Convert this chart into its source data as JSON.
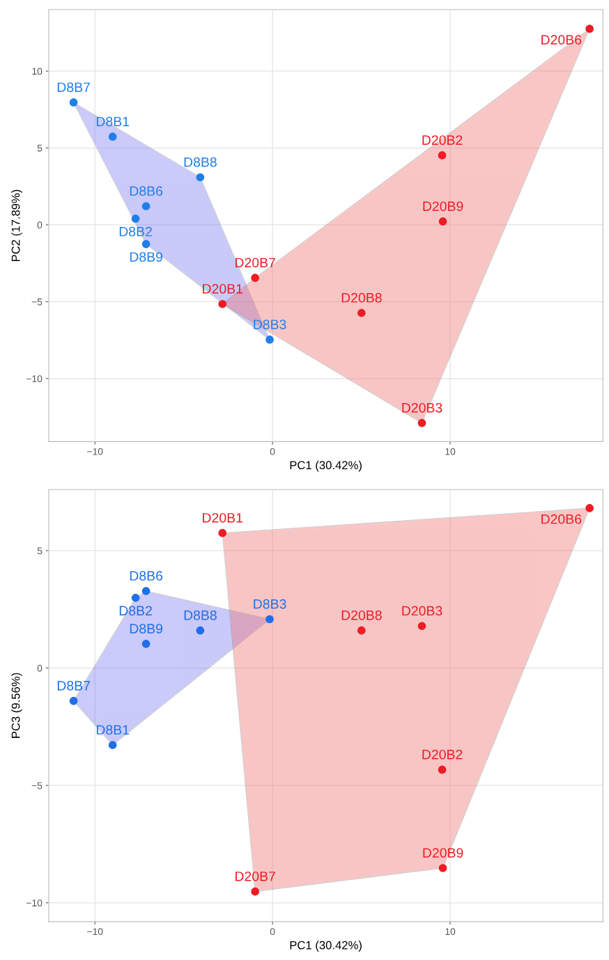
{
  "chart_data": [
    {
      "type": "scatter",
      "xlabel": "PC1 (30.42%)",
      "ylabel": "PC2 (17.89%)",
      "xlim": [
        -12.6,
        18.6
      ],
      "ylim": [
        -14.1,
        14.0
      ],
      "xticks": [
        -10,
        0,
        10
      ],
      "yticks": [
        -10,
        -5,
        0,
        5,
        10
      ],
      "grid": true,
      "marker": "circle",
      "series": [
        {
          "color": "#1f7fe8",
          "x": [
            -11.2,
            -9.0,
            -4.07,
            -7.12,
            -7.71,
            -7.12,
            -0.16
          ],
          "values": [
            7.96,
            5.73,
            3.09,
            1.21,
            0.4,
            -1.25,
            -7.47
          ]
        },
        {
          "color": "#ee1c25",
          "x": [
            17.85,
            9.55,
            9.59,
            -0.98,
            -2.82,
            5.01,
            8.41
          ],
          "values": [
            12.75,
            4.52,
            0.22,
            -3.45,
            -5.15,
            -5.73,
            -12.89
          ]
        }
      ],
      "annotations": [
        {
          "text": "D8B7",
          "x": -11.2,
          "y": 7.96
        },
        {
          "text": "D8B1",
          "x": -9.0,
          "y": 5.73
        },
        {
          "text": "D8B8",
          "x": -4.07,
          "y": 3.09
        },
        {
          "text": "D8B6",
          "x": -7.12,
          "y": 1.21
        },
        {
          "text": "D8B2",
          "x": -7.71,
          "y": 0.4
        },
        {
          "text": "D8B9",
          "x": -7.12,
          "y": -1.25
        },
        {
          "text": "D8B3",
          "x": -0.16,
          "y": -7.47
        },
        {
          "text": "D20B6",
          "x": 17.85,
          "y": 12.75
        },
        {
          "text": "D20B2",
          "x": 9.55,
          "y": 4.52
        },
        {
          "text": "D20B9",
          "x": 9.59,
          "y": 0.22
        },
        {
          "text": "D20B7",
          "x": -0.98,
          "y": -3.45
        },
        {
          "text": "D20B1",
          "x": -2.82,
          "y": -5.15
        },
        {
          "text": "D20B8",
          "x": 5.01,
          "y": -5.73
        },
        {
          "text": "D20B3",
          "x": 8.41,
          "y": -12.89
        }
      ]
    },
    {
      "type": "scatter",
      "xlabel": "PC1 (30.42%)",
      "ylabel": "PC3 (9.56%)",
      "xlim": [
        -12.6,
        18.6
      ],
      "ylim": [
        -10.8,
        7.6
      ],
      "xticks": [
        -10,
        0,
        10
      ],
      "yticks": [
        -10,
        -5,
        0,
        5
      ],
      "grid": true,
      "marker": "circle",
      "series": [
        {
          "color": "#1f6fe8",
          "x": [
            -11.2,
            -9.0,
            -4.07,
            -7.12,
            -7.71,
            -7.12,
            -0.16
          ],
          "values": [
            -1.4,
            -3.28,
            1.6,
            3.28,
            2.99,
            1.03,
            2.08
          ]
        },
        {
          "color": "#ee1c25",
          "x": [
            17.85,
            9.55,
            9.59,
            -0.98,
            -2.82,
            5.01,
            8.41
          ],
          "values": [
            6.81,
            -4.33,
            -8.52,
            -9.52,
            5.75,
            1.6,
            1.79
          ]
        }
      ],
      "annotations": [
        {
          "text": "D8B7",
          "x": -11.2,
          "y": -1.4
        },
        {
          "text": "D8B1",
          "x": -9.0,
          "y": -3.28
        },
        {
          "text": "D8B8",
          "x": -4.07,
          "y": 1.6
        },
        {
          "text": "D8B6",
          "x": -7.12,
          "y": 3.28
        },
        {
          "text": "D8B2",
          "x": -7.71,
          "y": 2.99
        },
        {
          "text": "D8B9",
          "x": -7.12,
          "y": 1.03
        },
        {
          "text": "D8B3",
          "x": -0.16,
          "y": 2.08
        },
        {
          "text": "D20B6",
          "x": 17.85,
          "y": 6.81
        },
        {
          "text": "D20B2",
          "x": 9.55,
          "y": -4.33
        },
        {
          "text": "D20B9",
          "x": 9.59,
          "y": -8.52
        },
        {
          "text": "D20B7",
          "x": -0.98,
          "y": -9.52
        },
        {
          "text": "D20B1",
          "x": -2.82,
          "y": 5.75
        },
        {
          "text": "D20B8",
          "x": 5.01,
          "y": 1.6
        },
        {
          "text": "D20B3",
          "x": 8.41,
          "y": 1.79
        }
      ]
    }
  ]
}
